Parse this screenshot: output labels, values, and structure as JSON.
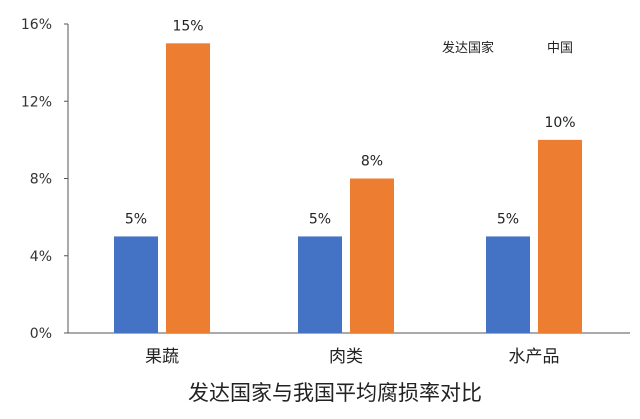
{
  "chart_data": {
    "type": "bar",
    "title": "发达国家与我国平均腐损率对比",
    "categories": [
      "果蔬",
      "肉类",
      "水产品"
    ],
    "series": [
      {
        "name": "发达国家",
        "values": [
          5,
          5,
          5
        ],
        "labels": [
          "5%",
          "5%",
          "5%"
        ],
        "color": "#4472C4"
      },
      {
        "name": "中国",
        "values": [
          15,
          8,
          10
        ],
        "labels": [
          "15%",
          "8%",
          "10%"
        ],
        "color": "#ED7D31"
      }
    ],
    "ylim": [
      0,
      16
    ],
    "yticks": [
      0,
      4,
      8,
      12,
      16
    ],
    "ytick_labels": [
      "0%",
      "4%",
      "8%",
      "12%",
      "16%"
    ],
    "legend_position": "top-right",
    "grid": false
  }
}
